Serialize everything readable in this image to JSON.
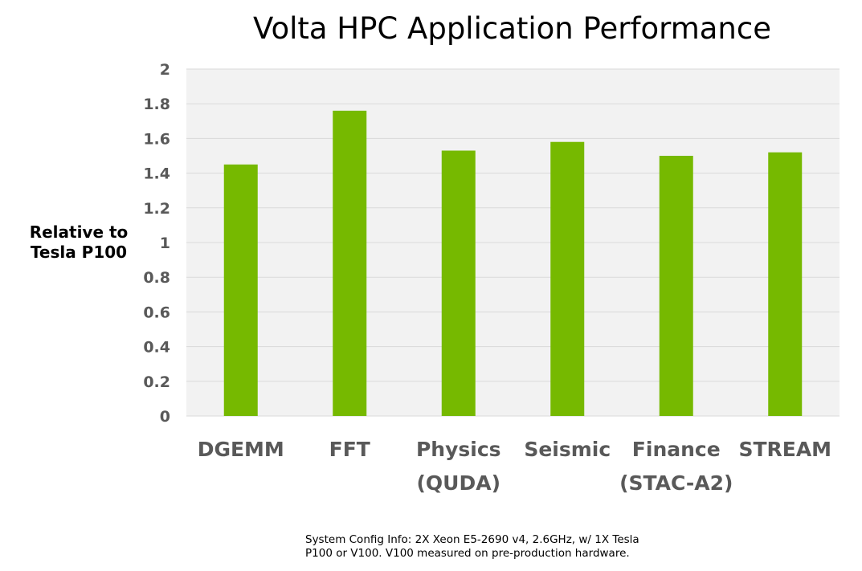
{
  "chart_data": {
    "type": "bar",
    "title": "Volta HPC Application Performance",
    "ylabel_lines": [
      "Relative to",
      "Tesla P100"
    ],
    "xlabel": "",
    "categories": [
      [
        "DGEMM"
      ],
      [
        "FFT"
      ],
      [
        "Physics",
        "(QUDA)"
      ],
      [
        "Seismic"
      ],
      [
        "Finance",
        "(STAC-A2)"
      ],
      [
        "STREAM"
      ]
    ],
    "values": [
      1.45,
      1.76,
      1.53,
      1.58,
      1.5,
      1.52
    ],
    "ylim": [
      0,
      2
    ],
    "yticks": [
      "0",
      "0.2",
      "0.4",
      "0.6",
      "0.8",
      "1",
      "1.2",
      "1.4",
      "1.6",
      "1.8",
      "2"
    ],
    "grid": true,
    "legend": "none",
    "colors": {
      "bar": "#76b900",
      "plot_background": "#f2f2f2",
      "grid": "#d9d9d9",
      "tick_text": "#595959",
      "category_text": "#595959"
    }
  },
  "footnote": {
    "line1": "System Config Info: 2X Xeon E5-2690 v4, 2.6GHz, w/ 1X Tesla",
    "line2": "P100 or V100. V100 measured on pre-production hardware."
  }
}
